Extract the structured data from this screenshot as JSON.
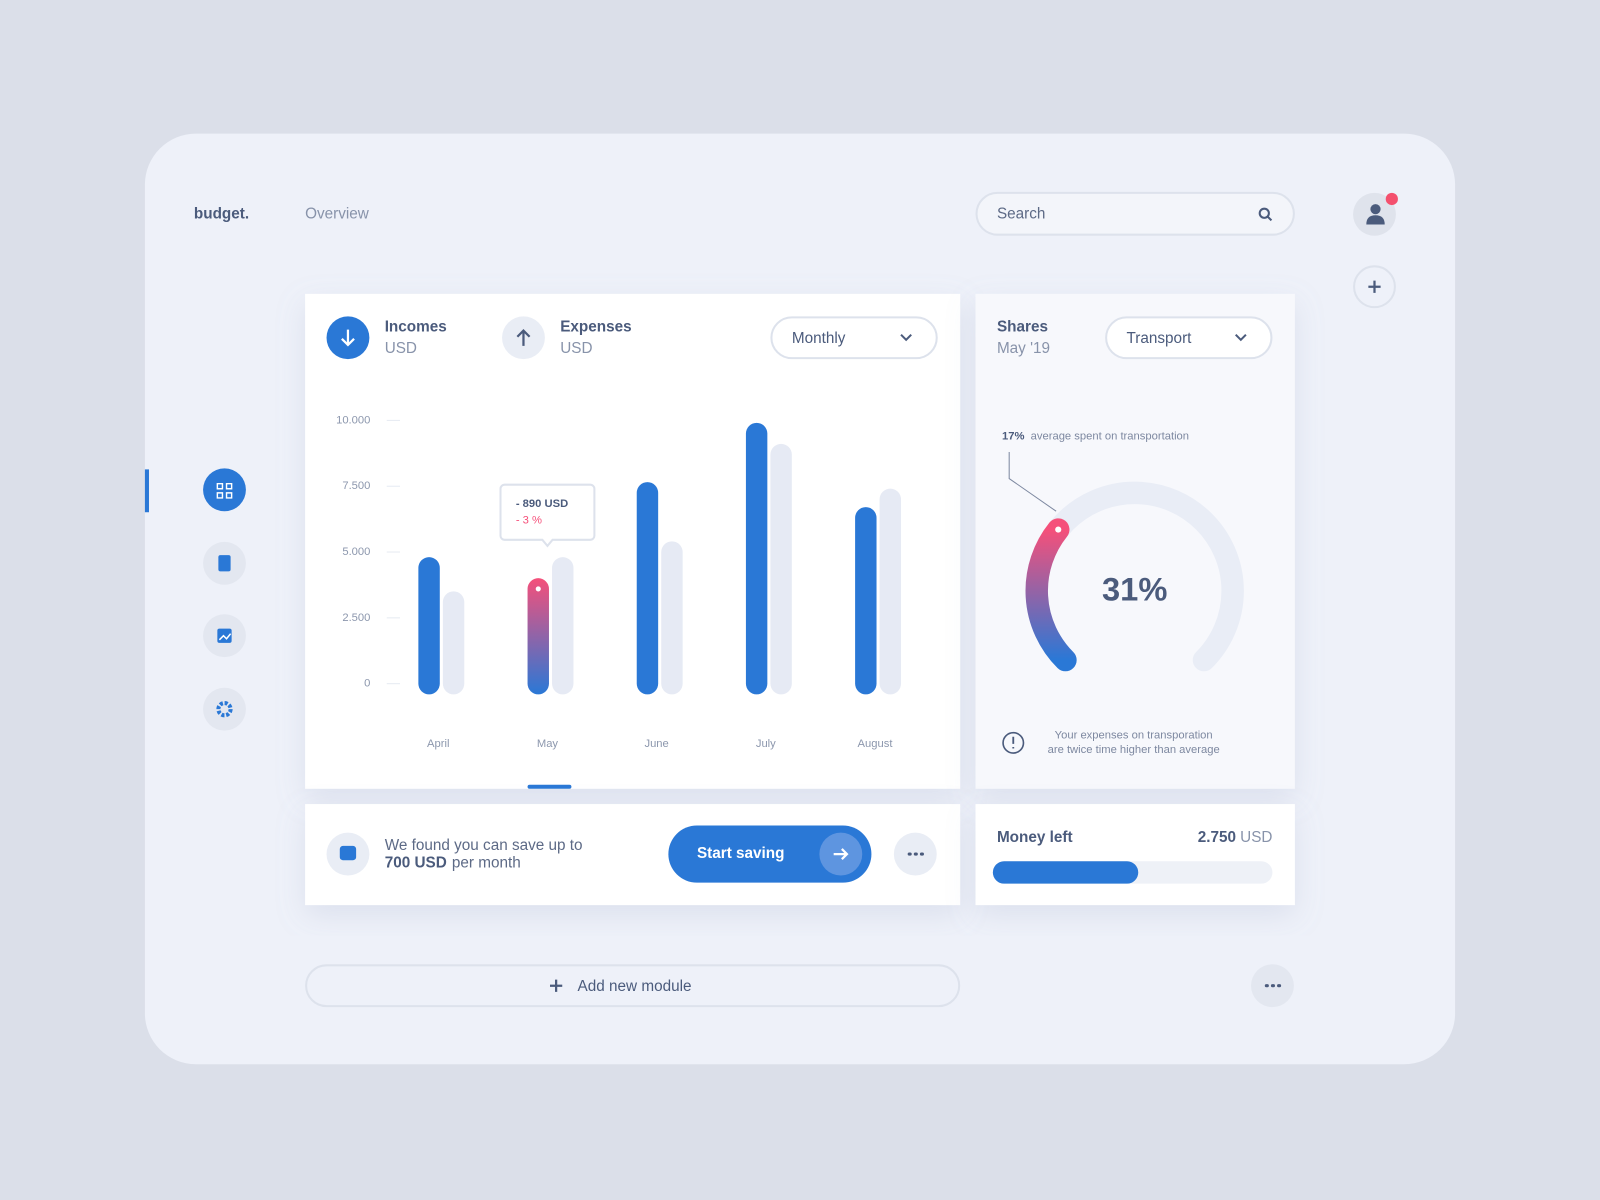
{
  "brand": "budget.",
  "nav": "Overview",
  "search": "Search",
  "chart_data": {
    "type": "bar",
    "period": "Monthly",
    "categories": [
      "April",
      "May",
      "June",
      "July",
      "August"
    ],
    "series": [
      {
        "name": "Incomes",
        "unit": "USD",
        "color": "#2a78d6",
        "values": [
          4400,
          3600,
          7250,
          9500,
          6300
        ]
      },
      {
        "name": "Expenses",
        "unit": "USD",
        "color": "#e6eaf4",
        "values": [
          3100,
          4400,
          5000,
          8700,
          7000
        ]
      }
    ],
    "highlight_color": "#f5507a",
    "annotation": {
      "x": "May",
      "lines": [
        "- 890 USD",
        "- 3 %"
      ]
    },
    "ylim": [
      0,
      10000
    ],
    "yticks": [
      0,
      {
        "value": 2500,
        "label": "2.500"
      },
      {
        "value": 5000,
        "label": "5.000"
      },
      {
        "value": 7500,
        "label": "7.500"
      },
      {
        "value": 10000,
        "label": "10.000"
      }
    ]
  },
  "shares": {
    "title": "Shares",
    "subtitle": "May '19",
    "filter": "Transport",
    "value": 31,
    "value_label": "31%",
    "average_label": "17%",
    "average_text": "average spent on transportation",
    "note_lines": [
      "Your expenses on transporation",
      "are twice time higher than average"
    ]
  },
  "savings": {
    "text": "We found you can save up to",
    "amount": "700 USD",
    "suffix": "per month",
    "button": "Start saving"
  },
  "money_left": {
    "title": "Money left",
    "amount": "2.750",
    "unit": "USD",
    "progress": 52
  },
  "add_module": "Add new module"
}
